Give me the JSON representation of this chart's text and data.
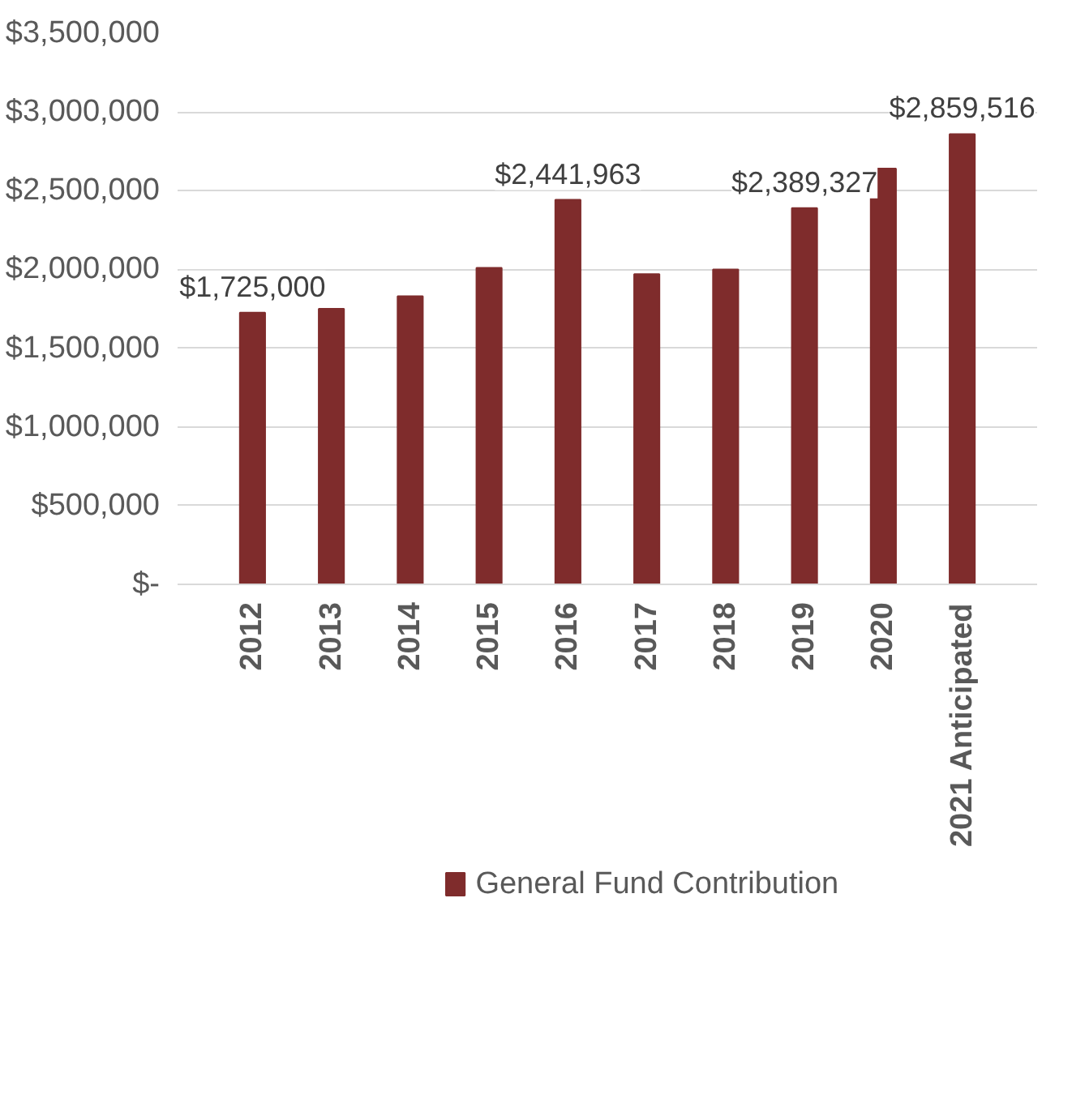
{
  "chart_data": {
    "type": "bar",
    "categories": [
      "2012",
      "2013",
      "2014",
      "2015",
      "2016",
      "2017",
      "2018",
      "2019",
      "2020",
      "2021 Anticipated"
    ],
    "series": [
      {
        "name": "General Fund Contribution",
        "color": "#7f2c2c",
        "values": [
          1725000,
          1750000,
          1830000,
          2010000,
          2441963,
          1970000,
          2000000,
          2389327,
          2640000,
          2859516
        ],
        "value_labels": [
          "$1,725,000",
          null,
          null,
          null,
          "$2,441,963",
          null,
          null,
          "$2,389,327",
          null,
          "$2,859,516"
        ]
      }
    ],
    "ylim": [
      0,
      3500000
    ],
    "yticks": [
      {
        "value": 0,
        "label": "$-"
      },
      {
        "value": 500000,
        "label": "$500,000"
      },
      {
        "value": 1000000,
        "label": "$1,000,000"
      },
      {
        "value": 1500000,
        "label": "$1,500,000"
      },
      {
        "value": 2000000,
        "label": "$2,000,000"
      },
      {
        "value": 2500000,
        "label": "$2,500,000"
      },
      {
        "value": 3000000,
        "label": "$3,000,000"
      },
      {
        "value": 3500000,
        "label": "$3,500,000"
      }
    ],
    "grid": "y",
    "legend": "bottom"
  }
}
